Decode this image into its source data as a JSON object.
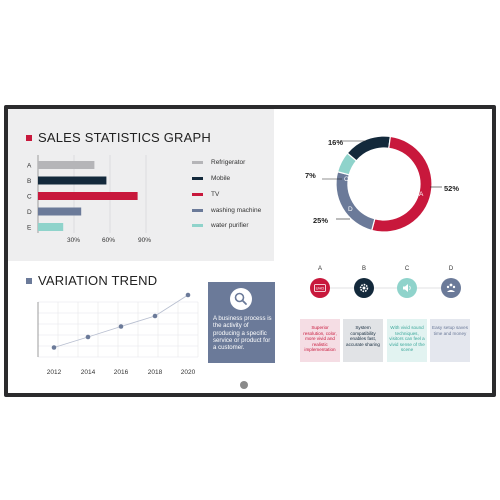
{
  "sales": {
    "title": "SALES STATISTICS GRAPH",
    "accent": "#c8183c",
    "categories": [
      "A",
      "B",
      "C",
      "D",
      "E"
    ],
    "bars": [
      {
        "label": "A",
        "value": 47,
        "color": "#b5b5b8"
      },
      {
        "label": "B",
        "value": 57,
        "color": "#13293b"
      },
      {
        "label": "C",
        "value": 83,
        "color": "#c8183c"
      },
      {
        "label": "D",
        "value": 36,
        "color": "#6b7a99"
      },
      {
        "label": "E",
        "value": 21,
        "color": "#8fd3cb"
      }
    ],
    "x_ticks": [
      "30%",
      "60%",
      "90%"
    ],
    "legend": [
      {
        "label": "Refrigerator",
        "color": "#b5b5b8"
      },
      {
        "label": "Mobile",
        "color": "#13293b"
      },
      {
        "label": "TV",
        "color": "#c8183c"
      },
      {
        "label": "washing machine",
        "color": "#6b7a99"
      },
      {
        "label": "water purifier",
        "color": "#8fd3cb"
      }
    ]
  },
  "trend": {
    "title": "VARIATION TREND",
    "accent": "#6b7a99",
    "years": [
      "2012",
      "2014",
      "2016",
      "2018",
      "2020"
    ],
    "values": [
      1,
      2,
      3,
      4,
      6
    ]
  },
  "business": {
    "icon": "magnifier-icon",
    "text": "A business process is the activity of producing a specific service or product for a customer."
  },
  "donut": {
    "segments": [
      {
        "letter": "A",
        "value": 52,
        "label": "52%",
        "color": "#c8183c"
      },
      {
        "letter": "D",
        "value": 25,
        "label": "25%",
        "color": "#6b7a99"
      },
      {
        "letter": "C",
        "value": 7,
        "label": "7%",
        "color": "#8fd3cb"
      },
      {
        "letter": "B",
        "value": 16,
        "label": "16%",
        "color": "#13293b"
      }
    ]
  },
  "steps": [
    {
      "letter": "A",
      "icon": "uhd-icon",
      "icon_text": "UHD",
      "color": "#c8183c",
      "card_bg": "#f5dde4",
      "card_color": "#c8183c",
      "text": "Superior resolution, color, more vivid and realistic implementation"
    },
    {
      "letter": "B",
      "icon": "gear-icon",
      "icon_text": "",
      "color": "#13293b",
      "card_bg": "#e1e3e6",
      "card_color": "#13293b",
      "text": "System compatibility enables fast, accurate sharing"
    },
    {
      "letter": "C",
      "icon": "speaker-icon",
      "icon_text": "",
      "color": "#8fd3cb",
      "card_bg": "#e2f3f1",
      "card_color": "#3aa79a",
      "text": "With vivid sound techniques, visitors can feel a vivid sense of the scene"
    },
    {
      "letter": "D",
      "icon": "crowd-icon",
      "icon_text": "",
      "color": "#6b7a99",
      "card_bg": "#e4e7ee",
      "card_color": "#6b7a99",
      "text": "Easy setup saves time and money"
    }
  ]
}
